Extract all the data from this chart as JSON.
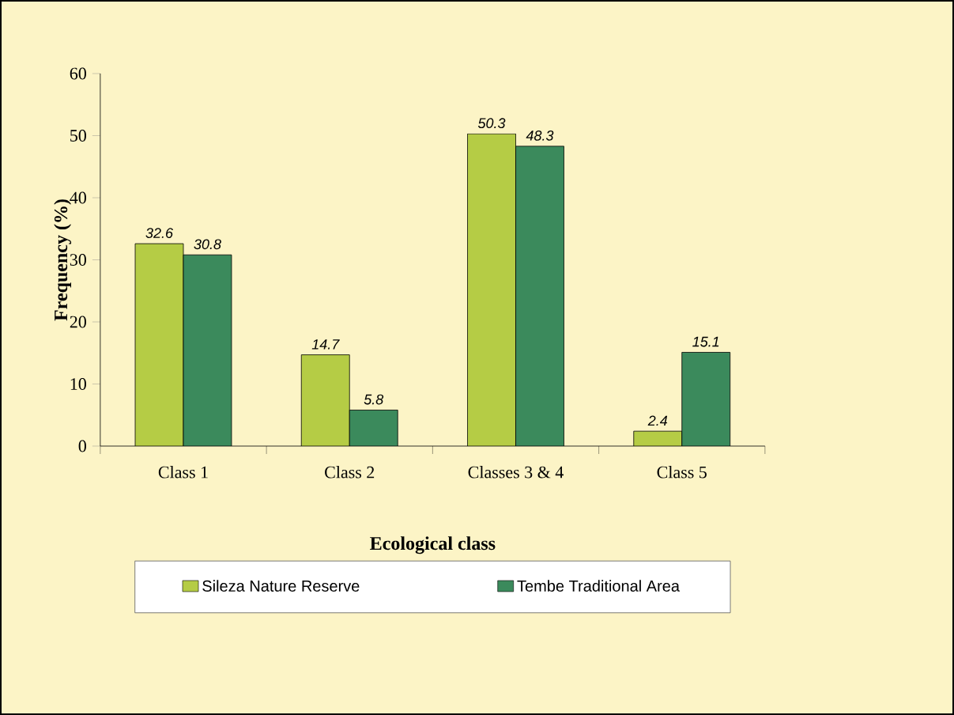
{
  "chart_data": {
    "type": "bar",
    "xlabel": "Ecological class",
    "ylabel": "Frequency (%)",
    "categories": [
      "Class 1",
      "Class 2",
      "Classes 3  & 4",
      "Class 5"
    ],
    "series": [
      {
        "name": "Sileza Nature Reserve",
        "color": "#b5cc45",
        "values": [
          32.6,
          14.7,
          50.3,
          2.4
        ]
      },
      {
        "name": "Tembe Traditional Area",
        "color": "#3b8a5c",
        "values": [
          30.8,
          5.8,
          48.3,
          15.1
        ]
      }
    ],
    "ylim": [
      0,
      60
    ],
    "yticks": [
      0,
      10,
      20,
      30,
      40,
      50,
      60
    ],
    "data_labels": true,
    "legend": "bottom",
    "grid": false
  }
}
